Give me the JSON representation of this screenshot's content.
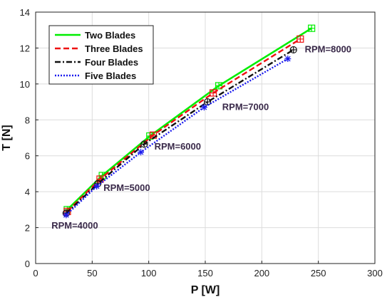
{
  "chart_data": {
    "type": "line",
    "title": "",
    "xlabel": "P [W]",
    "ylabel": "T [N]",
    "xlim": [
      0,
      300
    ],
    "ylim": [
      0,
      14
    ],
    "xticks": [
      0,
      50,
      100,
      150,
      200,
      250,
      300
    ],
    "yticks": [
      0,
      2,
      4,
      6,
      8,
      10,
      12,
      14
    ],
    "grid": true,
    "legend_position": "top-left",
    "series": [
      {
        "name": "Two Blades",
        "color": "#00ee00",
        "dash": "solid",
        "marker": "square-plus",
        "x": [
          28,
          59,
          101,
          162,
          244
        ],
        "y": [
          3.0,
          4.9,
          7.1,
          9.9,
          13.1
        ]
      },
      {
        "name": "Three Blades",
        "color": "#ee1111",
        "dash": "dashed",
        "marker": "square-plus",
        "x": [
          28,
          57,
          104,
          157,
          234
        ],
        "y": [
          2.9,
          4.7,
          7.15,
          9.5,
          12.5
        ]
      },
      {
        "name": "Four Blades",
        "color": "#111111",
        "dash": "dashdot",
        "marker": "circle-plus",
        "x": [
          27,
          55,
          96,
          152,
          228
        ],
        "y": [
          2.8,
          4.45,
          6.65,
          9.0,
          11.9
        ]
      },
      {
        "name": "Five Blades",
        "color": "#1a1aee",
        "dash": "dotted",
        "marker": "star",
        "x": [
          27,
          54,
          93,
          149,
          223
        ],
        "y": [
          2.7,
          4.3,
          6.2,
          8.7,
          11.4
        ]
      }
    ],
    "annotations": [
      {
        "text": "RPM=4000",
        "x": 14,
        "y": 1.95
      },
      {
        "text": "RPM=5000",
        "x": 60,
        "y": 4.05
      },
      {
        "text": "RPM=6000",
        "x": 105,
        "y": 6.35
      },
      {
        "text": "RPM=7000",
        "x": 165,
        "y": 8.55
      },
      {
        "text": "RPM=8000",
        "x": 238,
        "y": 11.75
      }
    ]
  }
}
